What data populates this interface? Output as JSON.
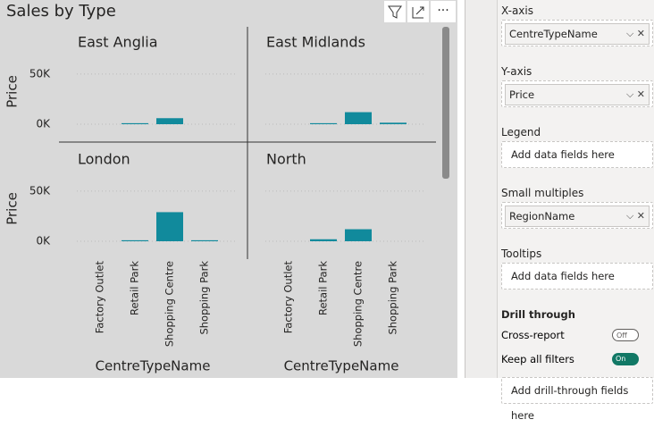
{
  "visual_title": "Sales by Type",
  "chart_data": [
    {
      "type": "bar",
      "title": "East Anglia",
      "y_label": "Price",
      "color": "#118a9c",
      "categories": [
        "Factory Outlet",
        "Retail Park",
        "Shopping Centre",
        "Shopping Park"
      ],
      "values": [
        null,
        1000,
        6000,
        null
      ],
      "ylim": [
        0,
        65000
      ],
      "yticks": [
        {
          "value": 0,
          "label": "0K"
        },
        {
          "value": 50000,
          "label": "50K"
        }
      ]
    },
    {
      "type": "bar",
      "title": "East Midlands",
      "color": "#118a9c",
      "categories": [
        "Factory Outlet",
        "Retail Park",
        "Shopping Centre",
        "Shopping Park"
      ],
      "values": [
        null,
        1000,
        12000,
        1500
      ],
      "ylim": [
        0,
        65000
      ],
      "yticks": [
        {
          "value": 0,
          "label": "0K"
        },
        {
          "value": 50000,
          "label": "50K"
        }
      ]
    },
    {
      "type": "bar",
      "title": "London",
      "y_label": "Price",
      "x_label": "CentreTypeName",
      "color": "#118a9c",
      "categories": [
        "Factory Outlet",
        "Retail Park",
        "Shopping Centre",
        "Shopping Park"
      ],
      "values": [
        null,
        1000,
        29000,
        1000
      ],
      "ylim": [
        0,
        65000
      ],
      "yticks": [
        {
          "value": 0,
          "label": "0K"
        },
        {
          "value": 50000,
          "label": "50K"
        }
      ]
    },
    {
      "type": "bar",
      "title": "North",
      "x_label": "CentreTypeName",
      "color": "#118a9c",
      "categories": [
        "Factory Outlet",
        "Retail Park",
        "Shopping Centre",
        "Shopping Park"
      ],
      "values": [
        null,
        2000,
        12000,
        null
      ],
      "ylim": [
        0,
        65000
      ],
      "yticks": [
        {
          "value": 0,
          "label": "0K"
        },
        {
          "value": 50000,
          "label": "50K"
        }
      ]
    }
  ],
  "pane": {
    "wells": [
      {
        "label": "X-axis",
        "field": "CentreTypeName"
      },
      {
        "label": "Y-axis",
        "field": "Price"
      },
      {
        "label": "Legend",
        "placeholder": "Add data fields here"
      },
      {
        "label": "Small multiples",
        "field": "RegionName"
      },
      {
        "label": "Tooltips",
        "placeholder": "Add data fields here"
      }
    ],
    "drill": {
      "title": "Drill through",
      "toggles": [
        {
          "label": "Cross-report",
          "state": "Off"
        },
        {
          "label": "Keep all filters",
          "state": "On"
        }
      ],
      "placeholder": "Add drill-through fields here"
    }
  }
}
